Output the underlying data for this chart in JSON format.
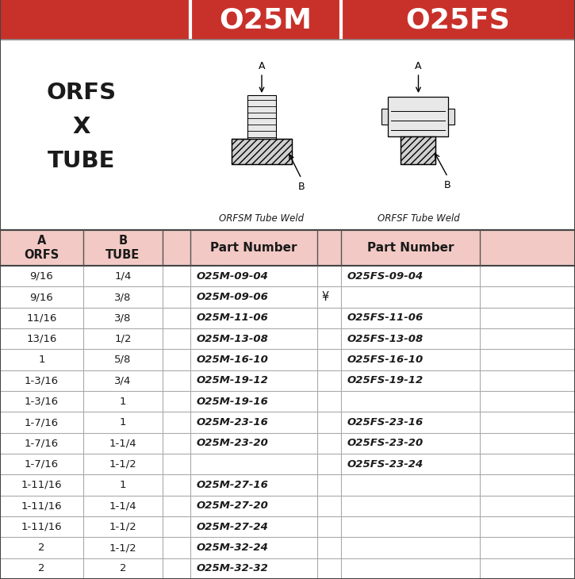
{
  "col1_header": "O25M",
  "col2_header": "O25FS",
  "header_bg": "#c8312a",
  "header_text_color": "#ffffff",
  "img_caption1": "ORFSM Tube Weld",
  "img_caption2": "ORFSF Tube Weld",
  "table_header_bg": "#f2c9c4",
  "text_color": "#1a1a1a",
  "rows": [
    [
      "9/16",
      "1/4",
      "O25M-09-04",
      "",
      "O25FS-09-04"
    ],
    [
      "9/16",
      "3/8",
      "O25M-09-06",
      "¥",
      ""
    ],
    [
      "11/16",
      "3/8",
      "O25M-11-06",
      "",
      "O25FS-11-06"
    ],
    [
      "13/16",
      "1/2",
      "O25M-13-08",
      "",
      "O25FS-13-08"
    ],
    [
      "1",
      "5/8",
      "O25M-16-10",
      "",
      "O25FS-16-10"
    ],
    [
      "1-3/16",
      "3/4",
      "O25M-19-12",
      "",
      "O25FS-19-12"
    ],
    [
      "1-3/16",
      "1",
      "O25M-19-16",
      "",
      ""
    ],
    [
      "1-7/16",
      "1",
      "O25M-23-16",
      "",
      "O25FS-23-16"
    ],
    [
      "1-7/16",
      "1-1/4",
      "O25M-23-20",
      "",
      "O25FS-23-20"
    ],
    [
      "1-7/16",
      "1-1/2",
      "",
      "",
      "O25FS-23-24"
    ],
    [
      "1-11/16",
      "1",
      "O25M-27-16",
      "",
      ""
    ],
    [
      "1-11/16",
      "1-1/4",
      "O25M-27-20",
      "",
      ""
    ],
    [
      "1-11/16",
      "1-1/2",
      "O25M-27-24",
      "",
      ""
    ],
    [
      "2",
      "1-1/2",
      "O25M-32-24",
      "",
      ""
    ],
    [
      "2",
      "2",
      "O25M-32-32",
      "",
      ""
    ]
  ],
  "body_font_size": 9.5,
  "background_color": "#ffffff"
}
